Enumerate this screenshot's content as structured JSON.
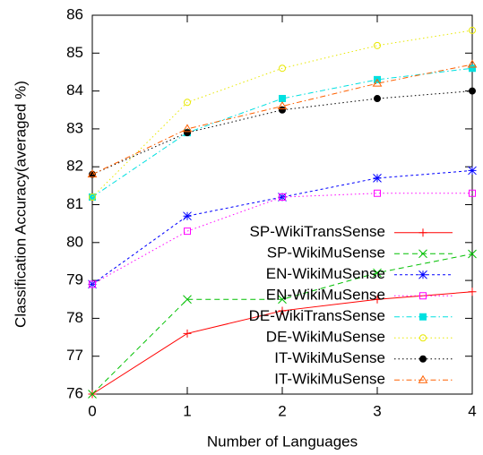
{
  "chart_data": {
    "type": "line",
    "xlabel": "Number of Languages",
    "ylabel": "Classification Accuracy(averaged %)",
    "x": [
      0,
      1,
      2,
      3,
      4
    ],
    "xlim": [
      0,
      4
    ],
    "xticks": [
      0,
      1,
      2,
      3,
      4
    ],
    "ylim": [
      76,
      86
    ],
    "yticks": [
      76,
      77,
      78,
      79,
      80,
      81,
      82,
      83,
      84,
      85,
      86
    ],
    "legend": "lower right",
    "series": [
      {
        "name": "SP-WikiTransSense",
        "color": "#ff0000",
        "marker": "plus",
        "dash": "solid",
        "values": [
          76.0,
          77.6,
          78.2,
          78.5,
          78.7
        ]
      },
      {
        "name": "SP-WikiMuSense",
        "color": "#00c000",
        "marker": "cross",
        "dash": "dashed",
        "values": [
          76.0,
          78.5,
          78.5,
          79.2,
          79.7
        ]
      },
      {
        "name": "EN-WikiMuSense",
        "color": "#0000ff",
        "marker": "star",
        "dash": "short-dashed",
        "values": [
          78.9,
          80.7,
          81.2,
          81.7,
          81.9
        ]
      },
      {
        "name": "EN-WikiMuSense",
        "color": "#ff00ff",
        "marker": "open-square",
        "dash": "dotted",
        "values": [
          78.9,
          80.3,
          81.2,
          81.3,
          81.3
        ]
      },
      {
        "name": "DE-WikiTransSense",
        "color": "#00e0e0",
        "marker": "filled-square",
        "dash": "dash-dot",
        "values": [
          81.2,
          82.9,
          83.8,
          84.3,
          84.6
        ]
      },
      {
        "name": "DE-WikiMuSense",
        "color": "#e8e800",
        "marker": "open-circle",
        "dash": "dotted",
        "values": [
          81.2,
          83.7,
          84.6,
          85.2,
          85.6
        ]
      },
      {
        "name": "IT-WikiMuSense",
        "color": "#000000",
        "marker": "filled-circle",
        "dash": "dotted",
        "values": [
          81.8,
          82.9,
          83.5,
          83.8,
          84.0
        ]
      },
      {
        "name": "IT-WikiMuSense",
        "color": "#ff6000",
        "marker": "triangle",
        "dash": "dash-dot",
        "values": [
          81.8,
          83.0,
          83.6,
          84.2,
          84.7
        ]
      }
    ]
  }
}
